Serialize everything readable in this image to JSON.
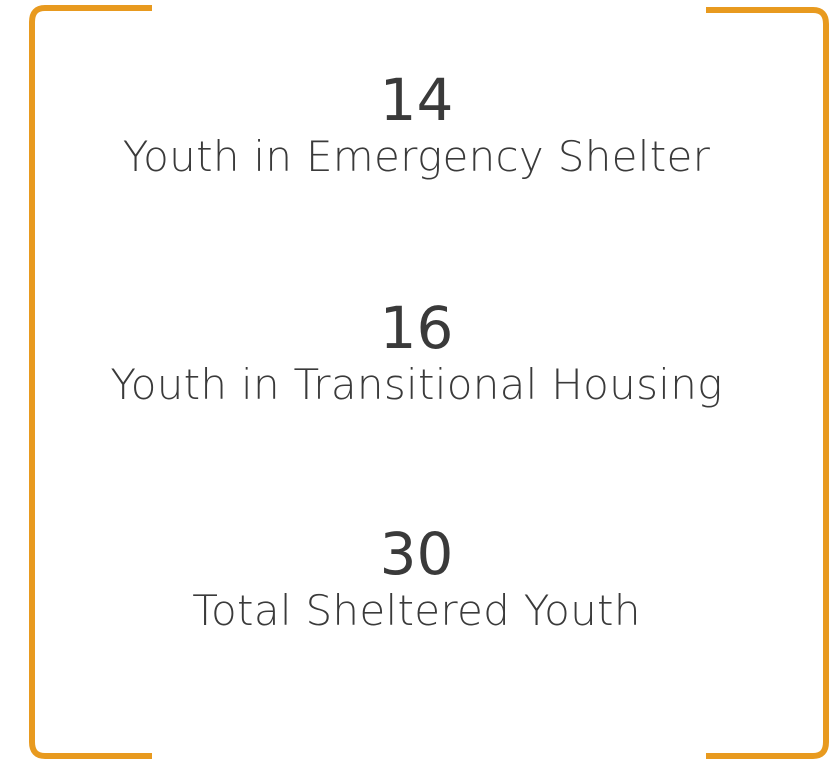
{
  "stats": [
    {
      "value": "14",
      "label": "Youth in Emergency Shelter"
    },
    {
      "value": "16",
      "label": "Youth in Transitional Housing"
    },
    {
      "value": "30",
      "label": "Total Sheltered Youth"
    }
  ]
}
